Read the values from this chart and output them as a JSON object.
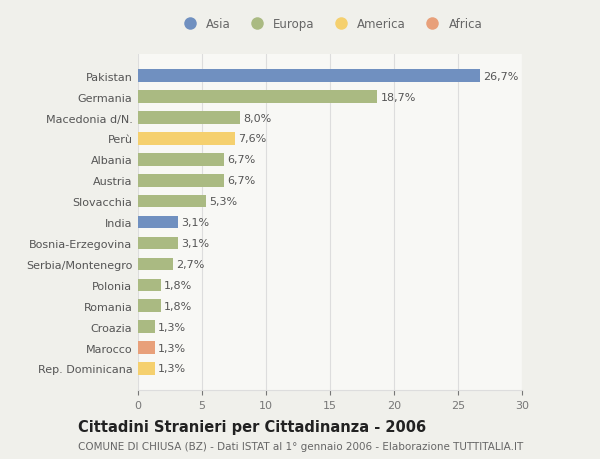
{
  "categories": [
    "Rep. Dominicana",
    "Marocco",
    "Croazia",
    "Romania",
    "Polonia",
    "Serbia/Montenegro",
    "Bosnia-Erzegovina",
    "India",
    "Slovacchia",
    "Austria",
    "Albania",
    "Perù",
    "Macedonia d/N.",
    "Germania",
    "Pakistan"
  ],
  "values": [
    1.3,
    1.3,
    1.3,
    1.8,
    1.8,
    2.7,
    3.1,
    3.1,
    5.3,
    6.7,
    6.7,
    7.6,
    8.0,
    18.7,
    26.7
  ],
  "labels": [
    "1,3%",
    "1,3%",
    "1,3%",
    "1,8%",
    "1,8%",
    "2,7%",
    "3,1%",
    "3,1%",
    "5,3%",
    "6,7%",
    "6,7%",
    "7,6%",
    "8,0%",
    "18,7%",
    "26,7%"
  ],
  "colors": [
    "#f5d06e",
    "#e8a07a",
    "#aaba82",
    "#aaba82",
    "#aaba82",
    "#aaba82",
    "#aaba82",
    "#7090c0",
    "#aaba82",
    "#aaba82",
    "#aaba82",
    "#f5d06e",
    "#aaba82",
    "#aaba82",
    "#7090c0"
  ],
  "continent_colors": {
    "Asia": "#7090c0",
    "Europa": "#aaba82",
    "America": "#f5d06e",
    "Africa": "#e8a07a"
  },
  "title": "Cittadini Stranieri per Cittadinanza - 2006",
  "subtitle": "COMUNE DI CHIUSA (BZ) - Dati ISTAT al 1° gennaio 2006 - Elaborazione TUTTITALIA.IT",
  "xlim": [
    0,
    30
  ],
  "xticks": [
    0,
    5,
    10,
    15,
    20,
    25,
    30
  ],
  "bg_color": "#f0f0eb",
  "plot_bg_color": "#f8f8f5",
  "grid_color": "#dddddd",
  "bar_height": 0.6,
  "label_fontsize": 8,
  "title_fontsize": 10.5,
  "subtitle_fontsize": 7.5,
  "tick_fontsize": 8,
  "legend_fontsize": 8.5
}
